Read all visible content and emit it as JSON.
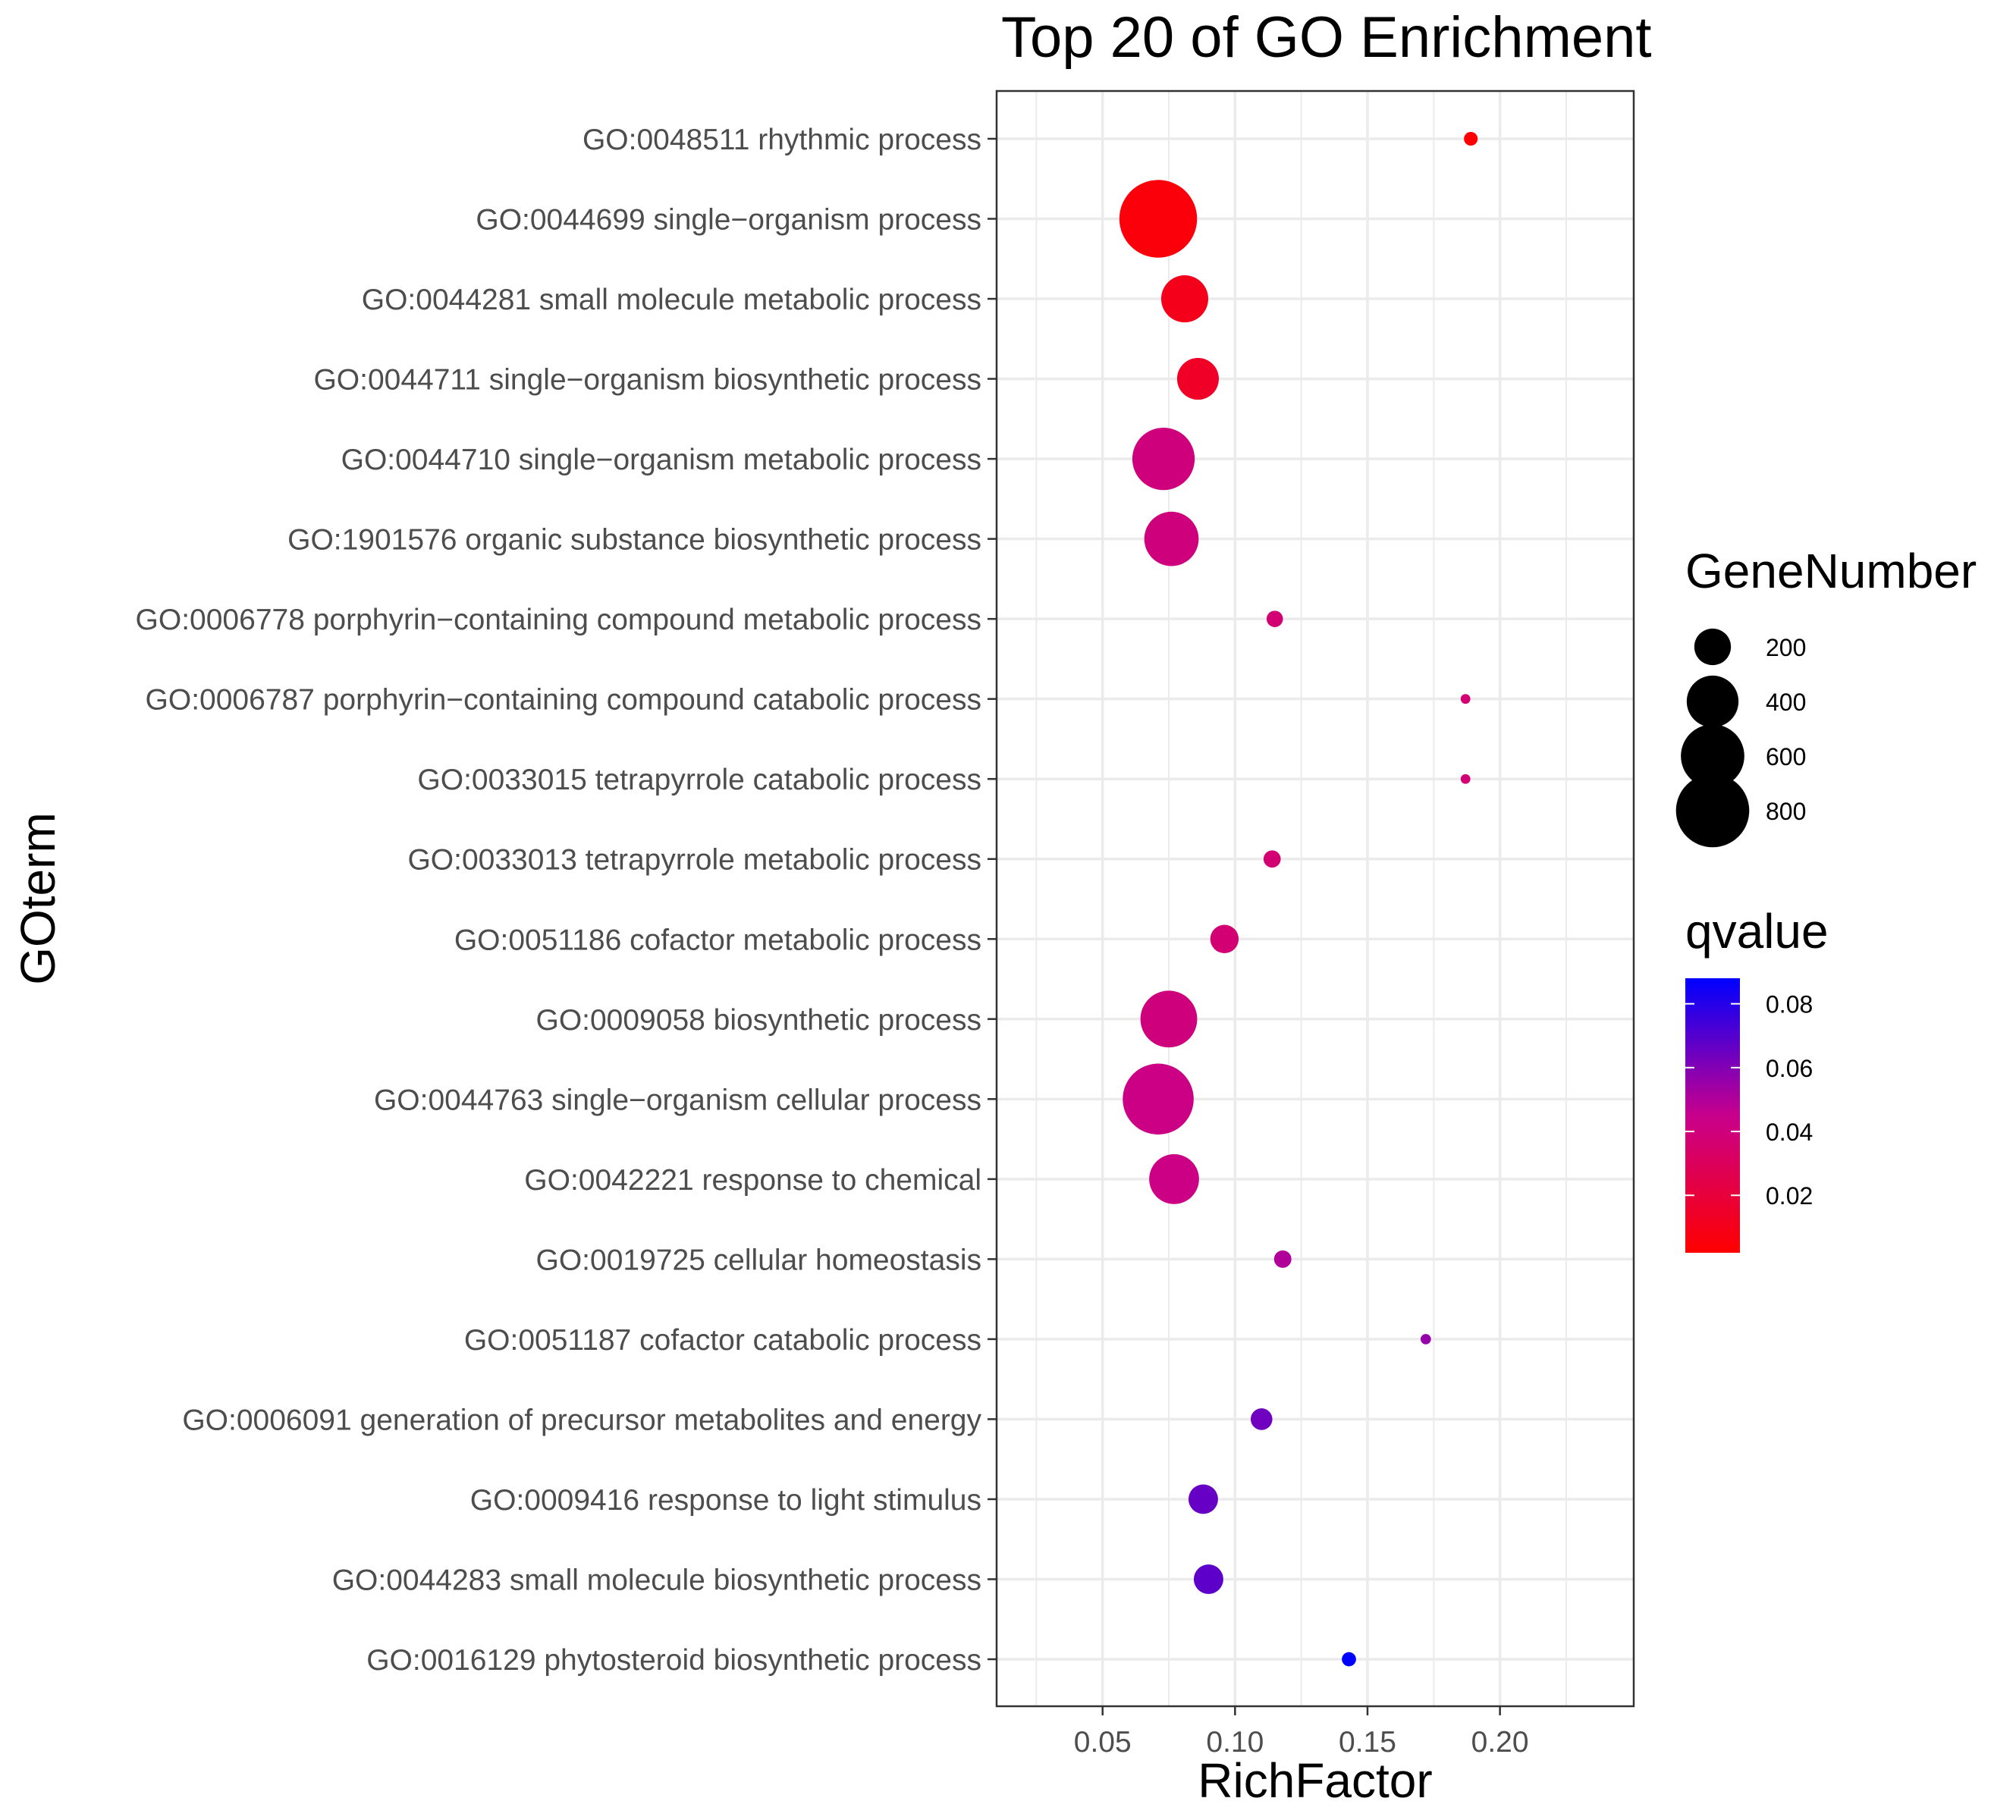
{
  "chart_data": {
    "type": "scatter",
    "title": "Top 20 of GO Enrichment",
    "xlabel": "RichFactor",
    "ylabel": "GOterm",
    "xlim": [
      0.01,
      0.2505
    ],
    "xticks": [
      0.05,
      0.1,
      0.15,
      0.2
    ],
    "xtick_labels": [
      "0.05",
      "0.10",
      "0.15",
      "0.20"
    ],
    "grid": true,
    "legend": {
      "size_title": "GeneNumber",
      "size_entries": [
        {
          "label": "200",
          "value": 200
        },
        {
          "label": "400",
          "value": 400
        },
        {
          "label": "600",
          "value": 600
        },
        {
          "label": "800",
          "value": 800
        }
      ],
      "color_title": "qvalue",
      "color_range": [
        0.002,
        0.088
      ],
      "color_ticks": [
        {
          "label": "0.08",
          "value": 0.08
        },
        {
          "label": "0.06",
          "value": 0.06
        },
        {
          "label": "0.04",
          "value": 0.04
        },
        {
          "label": "0.02",
          "value": 0.02
        }
      ],
      "colors": {
        "low": "#FF0000",
        "high": "#0000FF"
      },
      "placement": "right"
    },
    "points": [
      {
        "term": "GO:0048511 rhythmic process",
        "richfactor": 0.189,
        "genes": 28,
        "qvalue": 0.003
      },
      {
        "term": "GO:0044699 single−organism process",
        "richfactor": 0.071,
        "genes": 900,
        "qvalue": 0.005
      },
      {
        "term": "GO:0044281 small molecule metabolic process",
        "richfactor": 0.081,
        "genes": 330,
        "qvalue": 0.01
      },
      {
        "term": "GO:0044711 single−organism biosynthetic process",
        "richfactor": 0.086,
        "genes": 260,
        "qvalue": 0.014
      },
      {
        "term": "GO:0044710 single−organism metabolic process",
        "richfactor": 0.073,
        "genes": 580,
        "qvalue": 0.04
      },
      {
        "term": "GO:1901576 organic substance biosynthetic process",
        "richfactor": 0.076,
        "genes": 440,
        "qvalue": 0.04
      },
      {
        "term": "GO:0006778 porphyrin−containing compound metabolic process",
        "richfactor": 0.115,
        "genes": 40,
        "qvalue": 0.037
      },
      {
        "term": "GO:0006787 porphyrin−containing compound catabolic process",
        "richfactor": 0.187,
        "genes": 14,
        "qvalue": 0.037
      },
      {
        "term": "GO:0033015 tetrapyrrole catabolic process",
        "richfactor": 0.187,
        "genes": 14,
        "qvalue": 0.037
      },
      {
        "term": "GO:0033013 tetrapyrrole metabolic process",
        "richfactor": 0.114,
        "genes": 44,
        "qvalue": 0.037
      },
      {
        "term": "GO:0051186 cofactor metabolic process",
        "richfactor": 0.096,
        "genes": 120,
        "qvalue": 0.037
      },
      {
        "term": "GO:0009058 biosynthetic process",
        "richfactor": 0.075,
        "genes": 480,
        "qvalue": 0.04
      },
      {
        "term": "GO:0044763 single−organism cellular process",
        "richfactor": 0.071,
        "genes": 750,
        "qvalue": 0.043
      },
      {
        "term": "GO:0042221 response to chemical",
        "richfactor": 0.077,
        "genes": 370,
        "qvalue": 0.043
      },
      {
        "term": "GO:0019725 cellular homeostasis",
        "richfactor": 0.118,
        "genes": 45,
        "qvalue": 0.05
      },
      {
        "term": "GO:0051187 cofactor catabolic process",
        "richfactor": 0.172,
        "genes": 16,
        "qvalue": 0.056
      },
      {
        "term": "GO:0006091 generation of precursor metabolites and energy",
        "richfactor": 0.11,
        "genes": 70,
        "qvalue": 0.064
      },
      {
        "term": "GO:0009416 response to light stimulus",
        "richfactor": 0.088,
        "genes": 130,
        "qvalue": 0.066
      },
      {
        "term": "GO:0044283 small molecule biosynthetic process",
        "richfactor": 0.09,
        "genes": 130,
        "qvalue": 0.068
      },
      {
        "term": "GO:0016129 phytosteroid biosynthetic process",
        "richfactor": 0.143,
        "genes": 30,
        "qvalue": 0.088
      }
    ]
  }
}
